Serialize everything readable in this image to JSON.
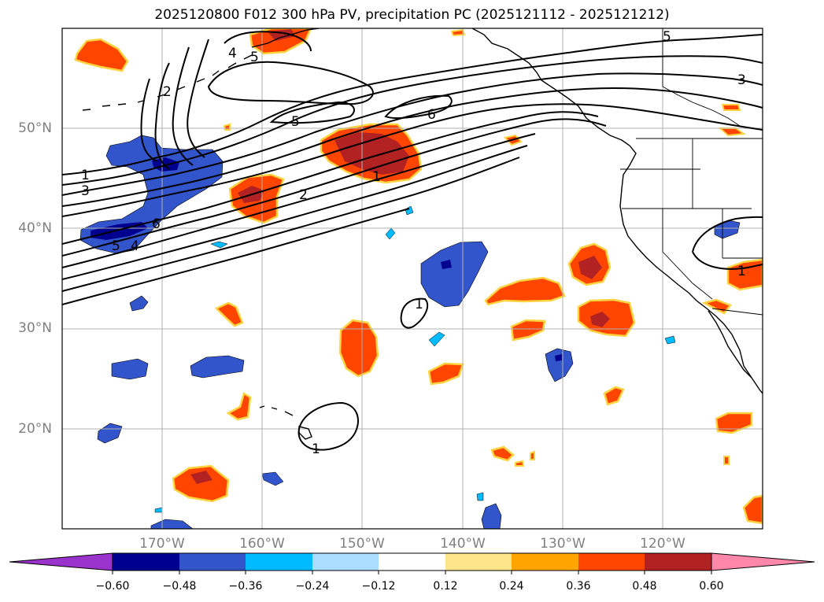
{
  "title": "2025120800 F012 300 hPa PV, precipitation PC (2025121112 - 2025121212)",
  "colors": {
    "neg_extreme": "#9933cc",
    "neg_060": "#000090",
    "neg_048": "#3355cc",
    "neg_036": "#00bbff",
    "neg_024": "#aaddff",
    "neutral": "#ffffff",
    "pos_012": "#ffe58a",
    "pos_024": "#ffa500",
    "pos_036": "#ff4500",
    "pos_048": "#b22222",
    "pos_extreme": "#ff88aa"
  },
  "map": {
    "lon_range": [
      -180,
      -110
    ],
    "lat_range": [
      10,
      60
    ],
    "lat_labels": [
      "20°N",
      "30°N",
      "40°N",
      "50°N"
    ],
    "lon_labels": [
      "170°W",
      "160°W",
      "150°W",
      "140°W",
      "130°W",
      "120°W"
    ],
    "contour_labels": [
      "1",
      "2",
      "3",
      "4",
      "5",
      "6"
    ]
  },
  "colorbar": {
    "ticks": [
      "−0.60",
      "−0.48",
      "−0.36",
      "−0.24",
      "−0.12",
      "0.12",
      "0.24",
      "0.36",
      "0.48",
      "0.60"
    ]
  }
}
